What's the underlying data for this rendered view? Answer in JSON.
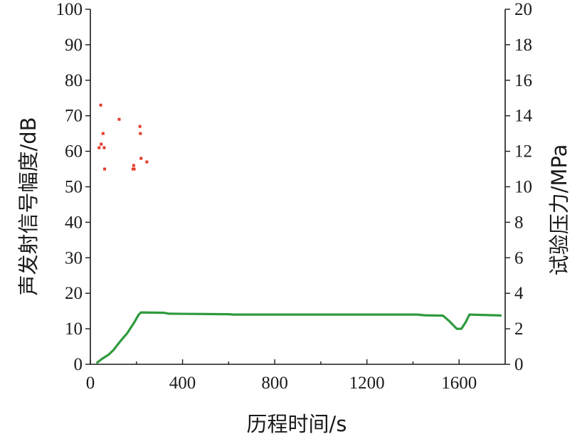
{
  "chart_data": {
    "type": "scatter",
    "xlabel": "历程时间/s",
    "ylabel": "声发射信号幅度/dB",
    "y2label": "试验压力/MPa",
    "xlim": [
      0,
      1800
    ],
    "ylim": [
      0,
      100
    ],
    "y2lim": [
      0,
      20
    ],
    "x_ticks": [
      0,
      400,
      800,
      1200,
      1600
    ],
    "y_ticks": [
      0,
      10,
      20,
      30,
      40,
      50,
      60,
      70,
      80,
      90,
      100
    ],
    "y2_ticks": [
      0,
      2,
      4,
      6,
      8,
      10,
      12,
      14,
      16,
      18,
      20
    ],
    "grid": false,
    "series": [
      {
        "axis": "left",
        "type": "scatter",
        "color": "#e23b2a",
        "points": [
          [
            38,
            61
          ],
          [
            45,
            73
          ],
          [
            47,
            62
          ],
          [
            55,
            65
          ],
          [
            60,
            61
          ],
          [
            62,
            55
          ],
          [
            125,
            69
          ],
          [
            185,
            55
          ],
          [
            188,
            56
          ],
          [
            190,
            55
          ],
          [
            215,
            67
          ],
          [
            217,
            65
          ],
          [
            220,
            58
          ],
          [
            245,
            57
          ]
        ]
      },
      {
        "axis": "right",
        "type": "line",
        "color": "#2f9a3e",
        "points": [
          [
            30,
            0.1
          ],
          [
            50,
            0.3
          ],
          [
            80,
            0.55
          ],
          [
            100,
            0.8
          ],
          [
            130,
            1.3
          ],
          [
            160,
            1.75
          ],
          [
            190,
            2.35
          ],
          [
            210,
            2.8
          ],
          [
            220,
            2.92
          ],
          [
            320,
            2.9
          ],
          [
            340,
            2.85
          ],
          [
            600,
            2.82
          ],
          [
            620,
            2.8
          ],
          [
            1420,
            2.8
          ],
          [
            1450,
            2.76
          ],
          [
            1530,
            2.74
          ],
          [
            1560,
            2.4
          ],
          [
            1590,
            2.0
          ],
          [
            1610,
            2.0
          ],
          [
            1630,
            2.4
          ],
          [
            1645,
            2.8
          ],
          [
            1700,
            2.78
          ],
          [
            1780,
            2.75
          ]
        ]
      }
    ]
  }
}
